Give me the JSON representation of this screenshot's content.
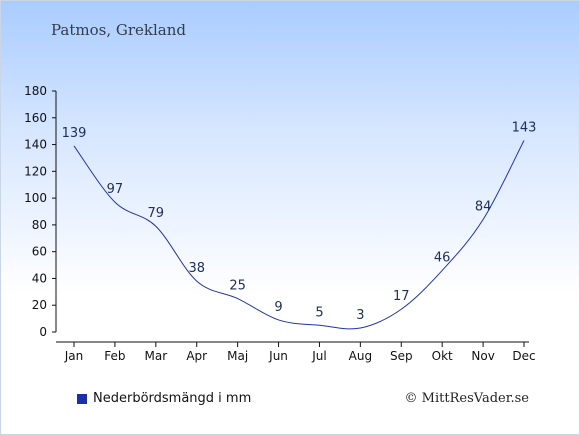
{
  "title": "Patmos, Grekland",
  "legend_label": "Nederbördsmängd i mm",
  "credit": "© MittResVader.se",
  "colors": {
    "line": "#2233aa",
    "legend_swatch": "#1a2fa8",
    "label": "#1f2f55"
  },
  "chart_data": {
    "type": "line",
    "categories": [
      "Jan",
      "Feb",
      "Mar",
      "Apr",
      "Maj",
      "Jun",
      "Jul",
      "Aug",
      "Sep",
      "Okt",
      "Nov",
      "Dec"
    ],
    "values": [
      139,
      97,
      79,
      38,
      25,
      9,
      5,
      3,
      17,
      46,
      84,
      143
    ],
    "ylim": [
      0,
      180
    ],
    "yticks": [
      0,
      20,
      40,
      60,
      80,
      100,
      120,
      140,
      160,
      180
    ],
    "grid": false,
    "legend_position": "bottom-left"
  }
}
